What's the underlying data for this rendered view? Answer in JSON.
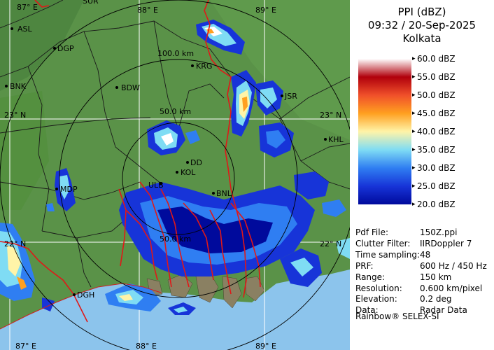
{
  "title": {
    "product": "PPI (dBZ)",
    "datetime": "09:32 / 20-Sep-2025",
    "station": "Kolkata"
  },
  "legend": [
    {
      "label": "60.0 dBZ",
      "color": "#ffffff"
    },
    {
      "label": "55.0 dBZ",
      "color": "#b0000c"
    },
    {
      "label": "50.0 dBZ",
      "color": "#f0502a"
    },
    {
      "label": "45.0 dBZ",
      "color": "#ffa020"
    },
    {
      "label": "40.0 dBZ",
      "color": "#fff4a8"
    },
    {
      "label": "35.0 dBZ",
      "color": "#7fdcf4"
    },
    {
      "label": "30.0 dBZ",
      "color": "#2f7ef2"
    },
    {
      "label": "25.0 dBZ",
      "color": "#1734d8"
    },
    {
      "label": "20.0 dBZ",
      "color": "#000a9c"
    }
  ],
  "info": [
    {
      "key": "Pdf File:",
      "value": "150Z.ppi"
    },
    {
      "key": "Clutter Filter:",
      "value": "IIRDoppler 7"
    },
    {
      "key": "Time sampling:",
      "value": "48"
    },
    {
      "key": "PRF:",
      "value": "600 Hz / 450 Hz"
    },
    {
      "key": "Range:",
      "value": "150 km"
    },
    {
      "key": "Resolution:",
      "value": "0.600 km/pixel"
    },
    {
      "key": "Elevation:",
      "value": "0.2 deg"
    },
    {
      "key": "Data:",
      "value": "Radar Data"
    }
  ],
  "credit": "Rainbow® SELEX-SI",
  "map": {
    "range_labels": [
      "100.0 km",
      "50.0 km",
      "50.0 km"
    ],
    "grid_labels": [
      "87° E",
      "88° E",
      "89° E",
      "87° E",
      "88° E",
      "89° E",
      "23° N",
      "23° N",
      "22° N",
      "22° N",
      "SUR"
    ],
    "places": [
      "ASL",
      "DGP",
      "BNK",
      "KRG",
      "BDW",
      "JSR",
      "KHL",
      "DD",
      "KOL",
      "ULB",
      "BNL",
      "MDP",
      "DGH"
    ],
    "colors": {
      "land": "#5a9248",
      "sea": "#8cc4ec",
      "rings": "#000000",
      "border": "#e01818",
      "district": "#1a1a1a",
      "grid": "#ffffff"
    }
  }
}
